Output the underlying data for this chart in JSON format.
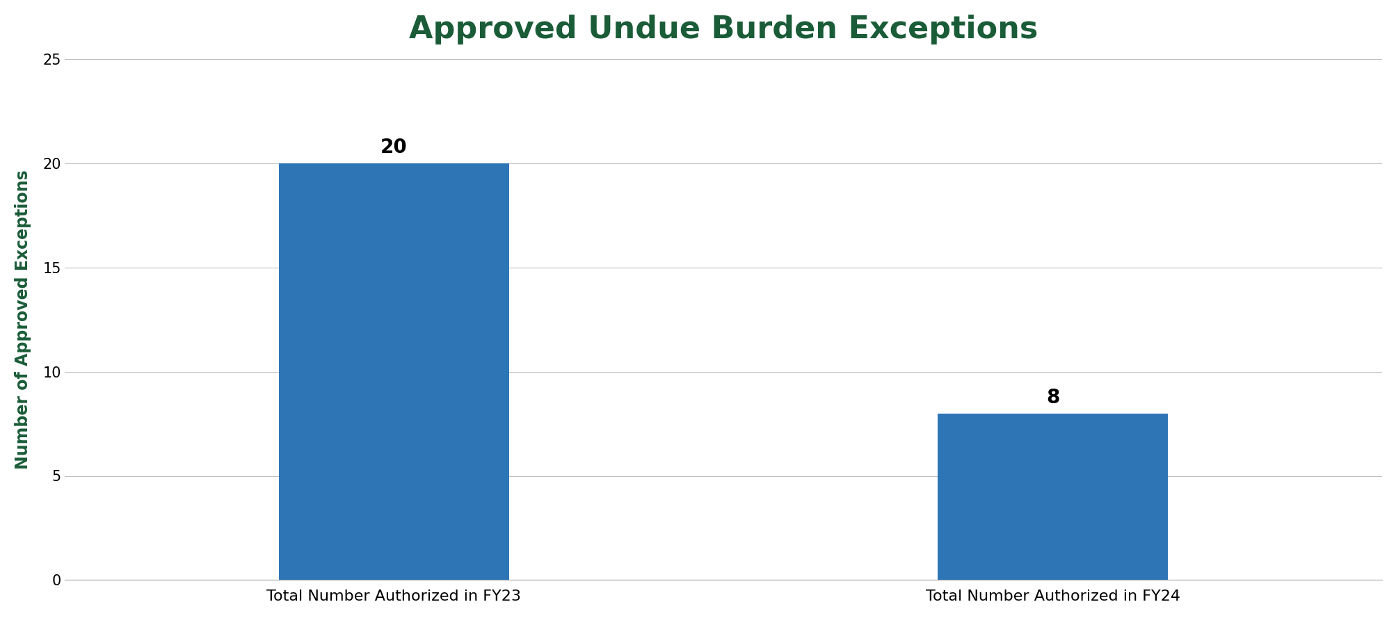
{
  "title": "Approved Undue Burden Exceptions",
  "title_color": "#1a5c38",
  "title_fontsize": 32,
  "title_fontweight": "bold",
  "categories": [
    "Total Number Authorized in FY23",
    "Total Number Authorized in FY24"
  ],
  "values": [
    20,
    8
  ],
  "bar_color": "#2e75b6",
  "ylabel": "Number of Approved Exceptions",
  "ylabel_color": "#1a5c38",
  "ylabel_fontsize": 17,
  "xlabel_fontsize": 16,
  "ylim": [
    0,
    25
  ],
  "yticks": [
    0,
    5,
    10,
    15,
    20,
    25
  ],
  "bar_label_fontsize": 20,
  "bar_label_fontweight": "bold",
  "background_color": "#ffffff",
  "grid_color": "#c0c0c0",
  "bar_width": 0.35,
  "bar_positions": [
    0.3,
    0.7
  ]
}
